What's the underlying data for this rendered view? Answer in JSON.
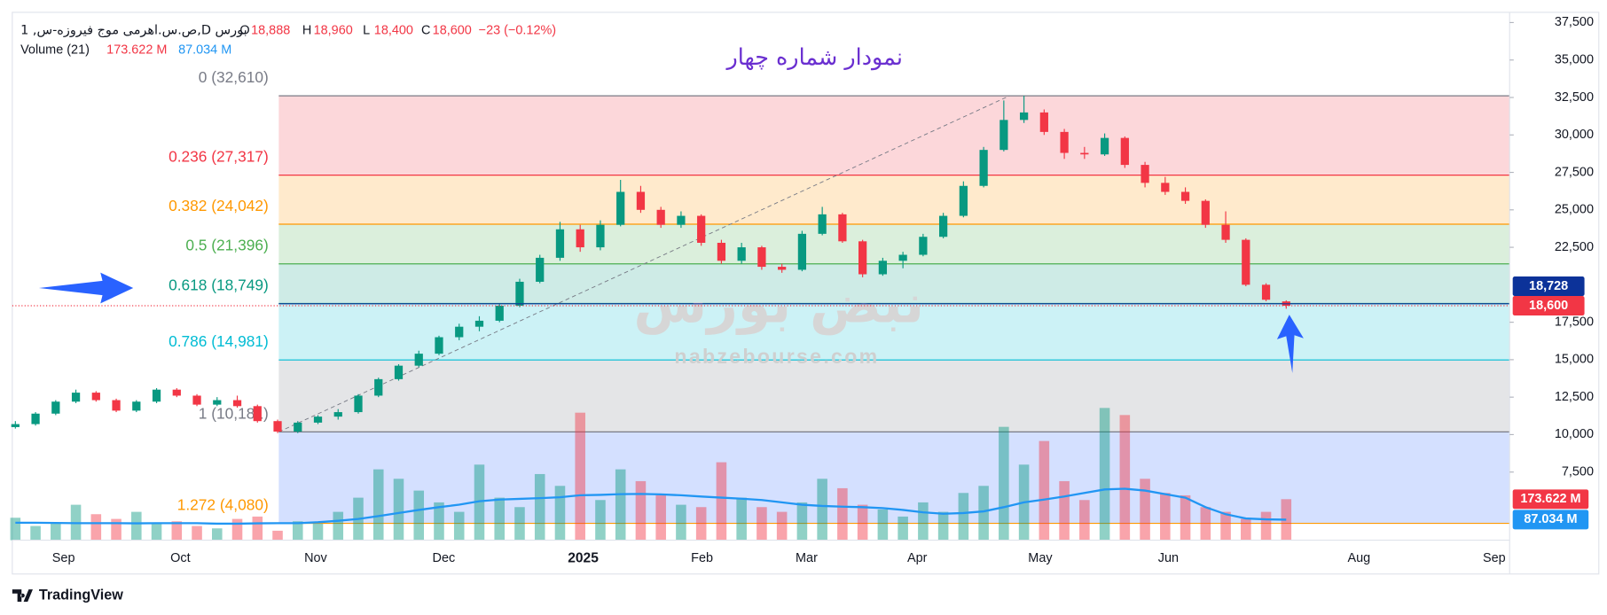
{
  "header": {
    "symbol": "1 ,ص.س.اهرمی موج فیروزه-س,D بورس",
    "ohlc": [
      {
        "key": "O",
        "label": "18,888"
      },
      {
        "key": "H",
        "label": "18,960"
      },
      {
        "key": "L",
        "label": "18,400"
      },
      {
        "key": "C",
        "label": "18,600"
      }
    ],
    "change": "−23 (−0.12%)",
    "volume_title": "Volume (21)"
  },
  "chart_data": {
    "type": "candlestick",
    "title": "نمودار شماره چهار",
    "up_color": "#089981",
    "down_color": "#f23645",
    "ylim": [
      2954,
      38184
    ],
    "yticks": [
      {
        "value": 7500,
        "label": "7,500"
      },
      {
        "value": 10000,
        "label": "10,000"
      },
      {
        "value": 12500,
        "label": "12,500"
      },
      {
        "value": 15000,
        "label": "15,000"
      },
      {
        "value": 17500,
        "label": "17,500"
      },
      {
        "value": 22500,
        "label": "22,500"
      },
      {
        "value": 25000,
        "label": "25,000"
      },
      {
        "value": 27500,
        "label": "27,500"
      },
      {
        "value": 30000,
        "label": "30,000"
      },
      {
        "value": 32500,
        "label": "32,500"
      },
      {
        "value": 35000,
        "label": "35,000"
      },
      {
        "value": 37500,
        "label": "37,500"
      }
    ],
    "xticks": [
      "Sep",
      "Oct",
      "Nov",
      "Dec",
      "2025",
      "Feb",
      "Mar",
      "Apr",
      "May",
      "Jun",
      "Aug",
      "Sep"
    ],
    "candles": [
      [
        10500,
        10900,
        10400,
        10700
      ],
      [
        10700,
        11500,
        10600,
        11400
      ],
      [
        11400,
        12300,
        11300,
        12200
      ],
      [
        12200,
        13000,
        12100,
        12800
      ],
      [
        12800,
        12900,
        12200,
        12300
      ],
      [
        12300,
        12400,
        11500,
        11600
      ],
      [
        11600,
        12300,
        11500,
        12200
      ],
      [
        12200,
        13100,
        12100,
        13000
      ],
      [
        13000,
        13100,
        12500,
        12600
      ],
      [
        12600,
        12700,
        11900,
        12000
      ],
      [
        12000,
        12500,
        11900,
        12300
      ],
      [
        12300,
        12600,
        11800,
        11900
      ],
      [
        11900,
        12000,
        10800,
        10900
      ],
      [
        10900,
        11000,
        10100,
        10200
      ],
      [
        10200,
        10900,
        10100,
        10800
      ],
      [
        10800,
        11300,
        10700,
        11200
      ],
      [
        11200,
        11700,
        11000,
        11500
      ],
      [
        11500,
        12700,
        11400,
        12600
      ],
      [
        12600,
        13800,
        12500,
        13700
      ],
      [
        13700,
        14700,
        13600,
        14600
      ],
      [
        14600,
        15600,
        14500,
        15400
      ],
      [
        15400,
        16600,
        15300,
        16500
      ],
      [
        16500,
        17400,
        16300,
        17200
      ],
      [
        17200,
        17900,
        16900,
        17600
      ],
      [
        17600,
        18700,
        17500,
        18600
      ],
      [
        18600,
        20400,
        18500,
        20200
      ],
      [
        20200,
        22000,
        20100,
        21800
      ],
      [
        21800,
        24200,
        21600,
        23700
      ],
      [
        23700,
        24000,
        22200,
        22500
      ],
      [
        22500,
        24300,
        22300,
        24000
      ],
      [
        24000,
        27000,
        23900,
        26200
      ],
      [
        26200,
        26600,
        24800,
        25000
      ],
      [
        25000,
        25200,
        23800,
        24000
      ],
      [
        24000,
        24900,
        23800,
        24600
      ],
      [
        24600,
        24700,
        22600,
        22800
      ],
      [
        22800,
        23000,
        21400,
        21600
      ],
      [
        21600,
        22800,
        21400,
        22500
      ],
      [
        22500,
        22600,
        21000,
        21200
      ],
      [
        21200,
        21400,
        20800,
        21000
      ],
      [
        21000,
        23600,
        20900,
        23400
      ],
      [
        23400,
        25200,
        23300,
        24700
      ],
      [
        24700,
        24800,
        22800,
        22900
      ],
      [
        22900,
        23000,
        20500,
        20700
      ],
      [
        20700,
        21800,
        20600,
        21600
      ],
      [
        21600,
        22200,
        21100,
        22000
      ],
      [
        22000,
        23400,
        21900,
        23200
      ],
      [
        23200,
        24800,
        23100,
        24600
      ],
      [
        24600,
        26900,
        24500,
        26600
      ],
      [
        26600,
        29200,
        26500,
        29000
      ],
      [
        29000,
        32300,
        28900,
        31000
      ],
      [
        31000,
        32610,
        30800,
        31500
      ],
      [
        31500,
        31700,
        30000,
        30200
      ],
      [
        30200,
        30400,
        28400,
        28800
      ],
      [
        28800,
        29200,
        28400,
        28700
      ],
      [
        28700,
        30100,
        28600,
        29800
      ],
      [
        29800,
        29900,
        27800,
        28000
      ],
      [
        28000,
        28200,
        26500,
        26800
      ],
      [
        26800,
        27200,
        26000,
        26200
      ],
      [
        26200,
        26500,
        25400,
        25600
      ],
      [
        25600,
        25700,
        23800,
        24000
      ],
      [
        24000,
        24900,
        22800,
        23000
      ],
      [
        23000,
        23100,
        19900,
        20000
      ],
      [
        20000,
        20100,
        18900,
        19000
      ],
      [
        18888,
        18960,
        18400,
        18600
      ]
    ],
    "volume": {
      "ylim": [
        0,
        560
      ],
      "values": [
        95,
        60,
        70,
        150,
        110,
        90,
        120,
        70,
        80,
        60,
        50,
        90,
        100,
        40,
        80,
        70,
        120,
        180,
        300,
        260,
        210,
        160,
        120,
        320,
        180,
        140,
        280,
        230,
        540,
        170,
        300,
        250,
        190,
        150,
        140,
        330,
        180,
        140,
        120,
        160,
        260,
        220,
        150,
        130,
        100,
        160,
        120,
        200,
        230,
        480,
        320,
        420,
        250,
        170,
        560,
        530,
        260,
        200,
        190,
        140,
        120,
        90,
        120,
        173.622
      ],
      "ma": [
        74,
        74,
        73,
        72,
        72,
        72,
        71,
        72,
        72,
        72,
        70,
        70,
        71,
        72,
        72,
        76,
        82,
        90,
        102,
        115,
        128,
        140,
        150,
        165,
        172,
        175,
        178,
        182,
        190,
        192,
        195,
        196,
        194,
        190,
        185,
        180,
        176,
        170,
        160,
        150,
        145,
        142,
        140,
        136,
        128,
        118,
        112,
        115,
        122,
        140,
        160,
        172,
        185,
        200,
        215,
        218,
        210,
        195,
        180,
        140,
        110,
        92,
        88,
        87.034
      ],
      "ma_color": "#2196f3"
    },
    "fib_levels": [
      {
        "label": "0 (32,610)",
        "price": 32610,
        "color": "#787b86",
        "fill": "rgba(242,54,69,0.2)"
      },
      {
        "label": "0.236 (27,317)",
        "price": 27317,
        "color": "#f23645",
        "fill": "rgba(255,152,0,0.2)"
      },
      {
        "label": "0.382 (24,042)",
        "price": 24042,
        "color": "#ff9800",
        "fill": "rgba(76,175,80,0.2)"
      },
      {
        "label": "0.5 (21,396)",
        "price": 21396,
        "color": "#4caf50",
        "fill": "rgba(8,153,129,0.2)"
      },
      {
        "label": "0.618 (18,749)",
        "price": 18749,
        "color": "#089981",
        "fill": "rgba(0,188,212,0.2)"
      },
      {
        "label": "0.786 (14,981)",
        "price": 14981,
        "color": "#00bcd4",
        "fill": "rgba(120,123,134,0.2)"
      },
      {
        "label": "1 (10,181)",
        "price": 10181,
        "color": "#787b86",
        "fill": "rgba(41,98,255,0.2)"
      },
      {
        "label": "1.272 (4,080)",
        "price": 4080,
        "color": "#ff9800"
      }
    ],
    "price_lines": [
      {
        "label": "18,728",
        "value": 18728,
        "color": "#0c3299"
      },
      {
        "label": "18,600",
        "value": 18600,
        "color": "#f23645"
      }
    ],
    "volume_tags": [
      {
        "label": "173.622 M",
        "value": 173.622,
        "color": "#f23645"
      },
      {
        "label": "87.034 M",
        "value": 87.034,
        "color": "#2196f3"
      }
    ]
  },
  "watermark": {
    "logo": "نبض بورس",
    "site": "nabzebourse.com"
  },
  "footer": {
    "brand": "TradingView"
  }
}
